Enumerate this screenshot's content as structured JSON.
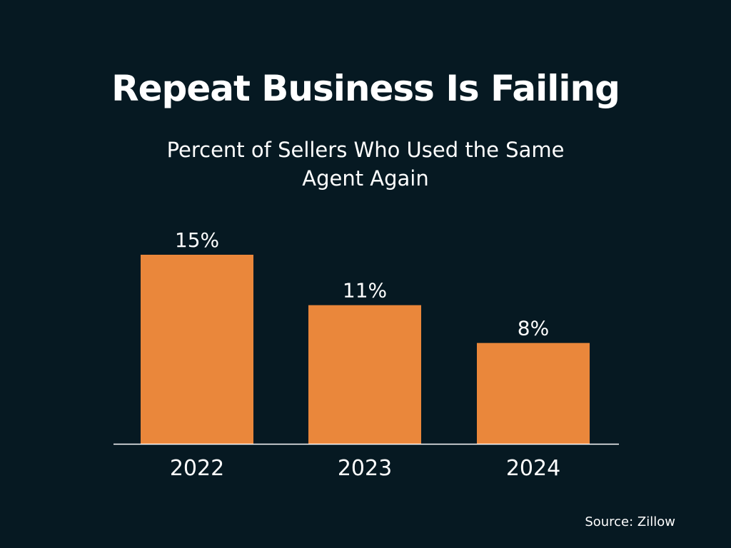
{
  "title": "Repeat Business Is Failing",
  "subtitle": "Percent of Sellers Who Used the Same Agent Again",
  "source": "Source: Zillow",
  "colors": {
    "background": "#061922",
    "bar": "#EA873B",
    "text": "#FFFFFF",
    "axis": "#FFFFFF"
  },
  "chart_data": {
    "type": "bar",
    "categories": [
      "2022",
      "2023",
      "2024"
    ],
    "values": [
      15,
      11,
      8
    ],
    "data_labels": [
      "15%",
      "11%",
      "8%"
    ],
    "title": "Repeat Business Is Failing",
    "subtitle": "Percent of Sellers Who Used the Same Agent Again",
    "xlabel": "",
    "ylabel": "",
    "ylim": [
      0,
      15
    ],
    "grid": false,
    "legend": "none"
  }
}
